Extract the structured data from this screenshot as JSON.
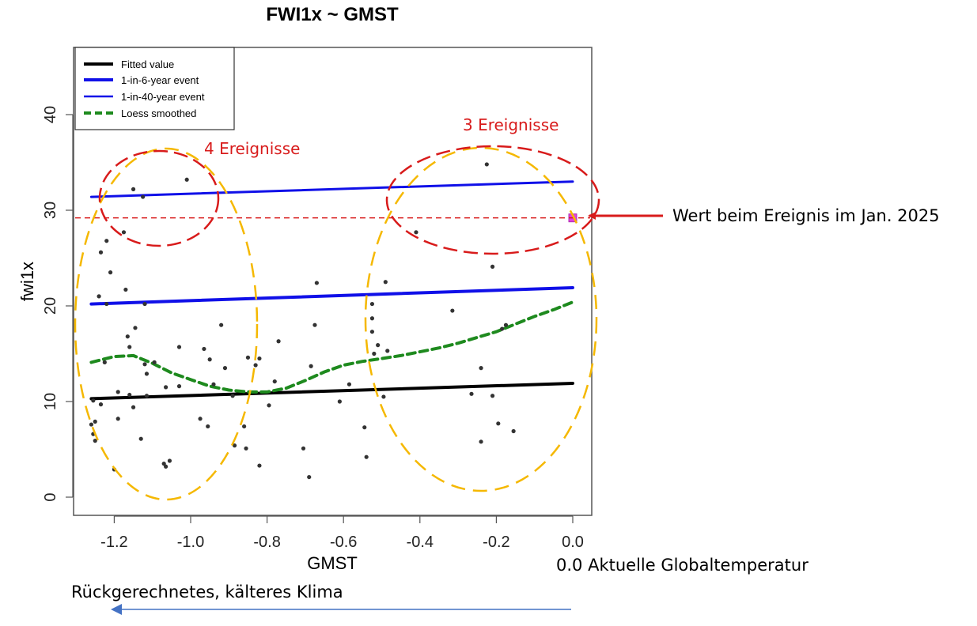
{
  "chart_data": {
    "type": "scatter",
    "title": "FWI1x ~ GMST",
    "xlabel": "GMST",
    "ylabel": "fwi1x",
    "xlim": [
      -1.32,
      0.05
    ],
    "ylim": [
      -2,
      47
    ],
    "x_ticks": [
      -1.2,
      -1.0,
      -0.8,
      -0.6,
      -0.4,
      -0.2,
      0.0
    ],
    "x_tick_labels": [
      "-1.2",
      "-1.0",
      "-0.8",
      "-0.6",
      "-0.4",
      "-0.2",
      "0.0"
    ],
    "y_ticks": [
      0,
      10,
      20,
      30,
      40
    ],
    "y_tick_labels": [
      "0",
      "10",
      "20",
      "30",
      "40"
    ],
    "points": [
      [
        -1.26,
        7.6
      ],
      [
        -1.255,
        10.1
      ],
      [
        -1.25,
        7.9
      ],
      [
        -1.255,
        6.6
      ],
      [
        -1.25,
        5.9
      ],
      [
        -1.24,
        21.0
      ],
      [
        -1.235,
        25.6
      ],
      [
        -1.235,
        9.7
      ],
      [
        -1.22,
        26.8
      ],
      [
        -1.21,
        23.5
      ],
      [
        -1.225,
        14.1
      ],
      [
        -1.22,
        20.2
      ],
      [
        -1.2,
        2.9
      ],
      [
        -1.19,
        11.0
      ],
      [
        -1.19,
        8.2
      ],
      [
        -1.175,
        27.7
      ],
      [
        -1.17,
        21.7
      ],
      [
        -1.165,
        16.8
      ],
      [
        -1.16,
        15.7
      ],
      [
        -1.16,
        10.7
      ],
      [
        -1.15,
        32.2
      ],
      [
        -1.145,
        17.7
      ],
      [
        -1.15,
        9.4
      ],
      [
        -1.13,
        6.1
      ],
      [
        -1.125,
        31.4
      ],
      [
        -1.12,
        20.2
      ],
      [
        -1.12,
        13.9
      ],
      [
        -1.115,
        12.9
      ],
      [
        -1.115,
        10.6
      ],
      [
        -1.095,
        14.1
      ],
      [
        -1.07,
        3.5
      ],
      [
        -1.065,
        3.2
      ],
      [
        -1.065,
        11.5
      ],
      [
        -1.055,
        3.8
      ],
      [
        -1.03,
        15.7
      ],
      [
        -1.03,
        11.6
      ],
      [
        -1.01,
        33.2
      ],
      [
        -0.975,
        8.2
      ],
      [
        -0.965,
        15.5
      ],
      [
        -0.955,
        7.4
      ],
      [
        -0.95,
        14.4
      ],
      [
        -0.94,
        11.8
      ],
      [
        -0.92,
        18.0
      ],
      [
        -0.91,
        13.5
      ],
      [
        -0.89,
        10.6
      ],
      [
        -0.885,
        5.4
      ],
      [
        -0.86,
        7.4
      ],
      [
        -0.855,
        5.1
      ],
      [
        -0.85,
        14.6
      ],
      [
        -0.83,
        13.8
      ],
      [
        -0.82,
        14.5
      ],
      [
        -0.82,
        3.3
      ],
      [
        -0.795,
        9.6
      ],
      [
        -0.78,
        12.1
      ],
      [
        -0.77,
        16.3
      ],
      [
        -0.705,
        5.1
      ],
      [
        -0.69,
        2.1
      ],
      [
        -0.685,
        13.7
      ],
      [
        -0.675,
        18.0
      ],
      [
        -0.67,
        22.4
      ],
      [
        -0.61,
        10.0
      ],
      [
        -0.585,
        11.8
      ],
      [
        -0.545,
        7.3
      ],
      [
        -0.54,
        4.2
      ],
      [
        -0.525,
        20.2
      ],
      [
        -0.525,
        18.7
      ],
      [
        -0.525,
        17.3
      ],
      [
        -0.52,
        15.0
      ],
      [
        -0.51,
        15.9
      ],
      [
        -0.495,
        10.5
      ],
      [
        -0.49,
        22.5
      ],
      [
        -0.485,
        15.3
      ],
      [
        -0.41,
        27.7
      ],
      [
        -0.315,
        19.5
      ],
      [
        -0.265,
        10.8
      ],
      [
        -0.24,
        13.5
      ],
      [
        -0.24,
        5.8
      ],
      [
        -0.225,
        34.8
      ],
      [
        -0.21,
        24.1
      ],
      [
        -0.21,
        10.6
      ],
      [
        -0.195,
        7.7
      ],
      [
        -0.185,
        17.6
      ],
      [
        -0.175,
        18.0
      ],
      [
        -0.155,
        6.9
      ]
    ],
    "event_point": [
      0.0,
      29.2
    ],
    "series": [
      {
        "name": "Fitted value",
        "x": [
          -1.26,
          0.0
        ],
        "y": [
          10.3,
          11.9
        ]
      },
      {
        "name": "1-in-6-year event",
        "x": [
          -1.26,
          0.0
        ],
        "y": [
          20.2,
          21.9
        ]
      },
      {
        "name": "1-in-40-year event",
        "x": [
          -1.26,
          0.0
        ],
        "y": [
          31.4,
          33.0
        ]
      },
      {
        "name": "Loess smoothed",
        "x": [
          -1.26,
          -1.2,
          -1.15,
          -1.1,
          -1.05,
          -1.0,
          -0.95,
          -0.9,
          -0.85,
          -0.8,
          -0.75,
          -0.7,
          -0.65,
          -0.6,
          -0.55,
          -0.5,
          -0.45,
          -0.4,
          -0.35,
          -0.3,
          -0.25,
          -0.2,
          -0.15,
          -0.1,
          -0.05,
          0.0
        ],
        "y": [
          14.1,
          14.7,
          14.8,
          14.0,
          13.0,
          12.3,
          11.6,
          11.2,
          11.0,
          11.0,
          11.4,
          12.2,
          13.1,
          13.8,
          14.2,
          14.5,
          14.8,
          15.2,
          15.6,
          16.1,
          16.7,
          17.3,
          18.1,
          18.9,
          19.6,
          20.4
        ]
      }
    ],
    "legend": {
      "position": "top-left",
      "entries": [
        "Fitted value",
        "1-in-6-year event",
        "1-in-40-year event",
        "Loess smoothed"
      ]
    },
    "threshold_line": {
      "y": 29.2
    },
    "colors": {
      "fitted": "#000000",
      "event6": "#1010e8",
      "event40": "#1010e8",
      "loess": "#1e8a1e",
      "points": "#333333",
      "red_annotation": "#d81b1b",
      "yellow_ellipse": "#f5b800",
      "event_point": "#e040e0",
      "arrow_blue": "#4472c4"
    },
    "grid": false
  },
  "annotations": {
    "cluster_left": "4 Ereignisse",
    "cluster_right": "3 Ereignisse",
    "event_value": "Wert beim Ereignis im Jan. 2025",
    "current_temp": "0.0 Aktuelle Globaltemperatur",
    "colder_climate": "Rückgerechnetes, kälteres Klima"
  }
}
